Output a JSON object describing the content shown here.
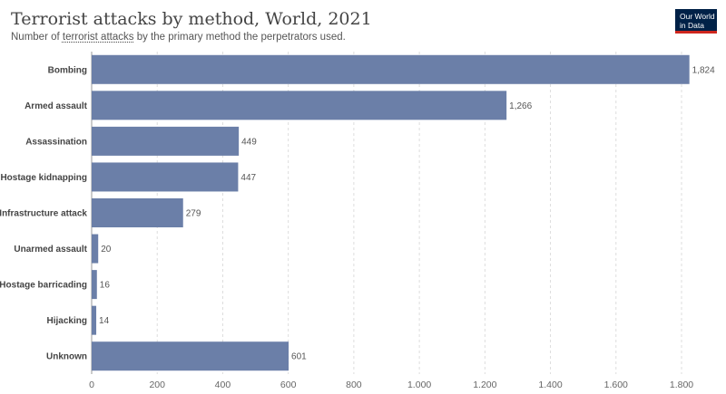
{
  "header": {
    "title": "Terrorist attacks by method, World, 2021",
    "subtitle_prefix": "Number of ",
    "subtitle_link": "terrorist attacks",
    "subtitle_suffix": " by the primary method the perpetrators used.",
    "logo_line1": "Our World",
    "logo_line2": "in Data"
  },
  "colors": {
    "bar": "#6b7fa8",
    "grid": "#dddddd",
    "axis": "#999999"
  },
  "chart_data": {
    "type": "bar",
    "orientation": "horizontal",
    "title": "Terrorist attacks by method, World, 2021",
    "categories": [
      "Bombing",
      "Armed assault",
      "Assassination",
      "Hostage kidnapping",
      "Infrastructure attack",
      "Unarmed assault",
      "Hostage barricading",
      "Hijacking",
      "Unknown"
    ],
    "values": [
      1824,
      1266,
      449,
      447,
      279,
      20,
      16,
      14,
      601
    ],
    "value_labels": [
      "1,824",
      "1,266",
      "449",
      "447",
      "279",
      "20",
      "16",
      "14",
      "601"
    ],
    "xlim": [
      0,
      1800
    ],
    "xticks": [
      0,
      200,
      400,
      600,
      800,
      1000,
      1200,
      1400,
      1600,
      1800
    ],
    "xtick_labels": [
      "0",
      "200",
      "400",
      "600",
      "800",
      "1.000",
      "1.200",
      "1.400",
      "1.600",
      "1.800"
    ],
    "grid": true,
    "legend": "none"
  }
}
